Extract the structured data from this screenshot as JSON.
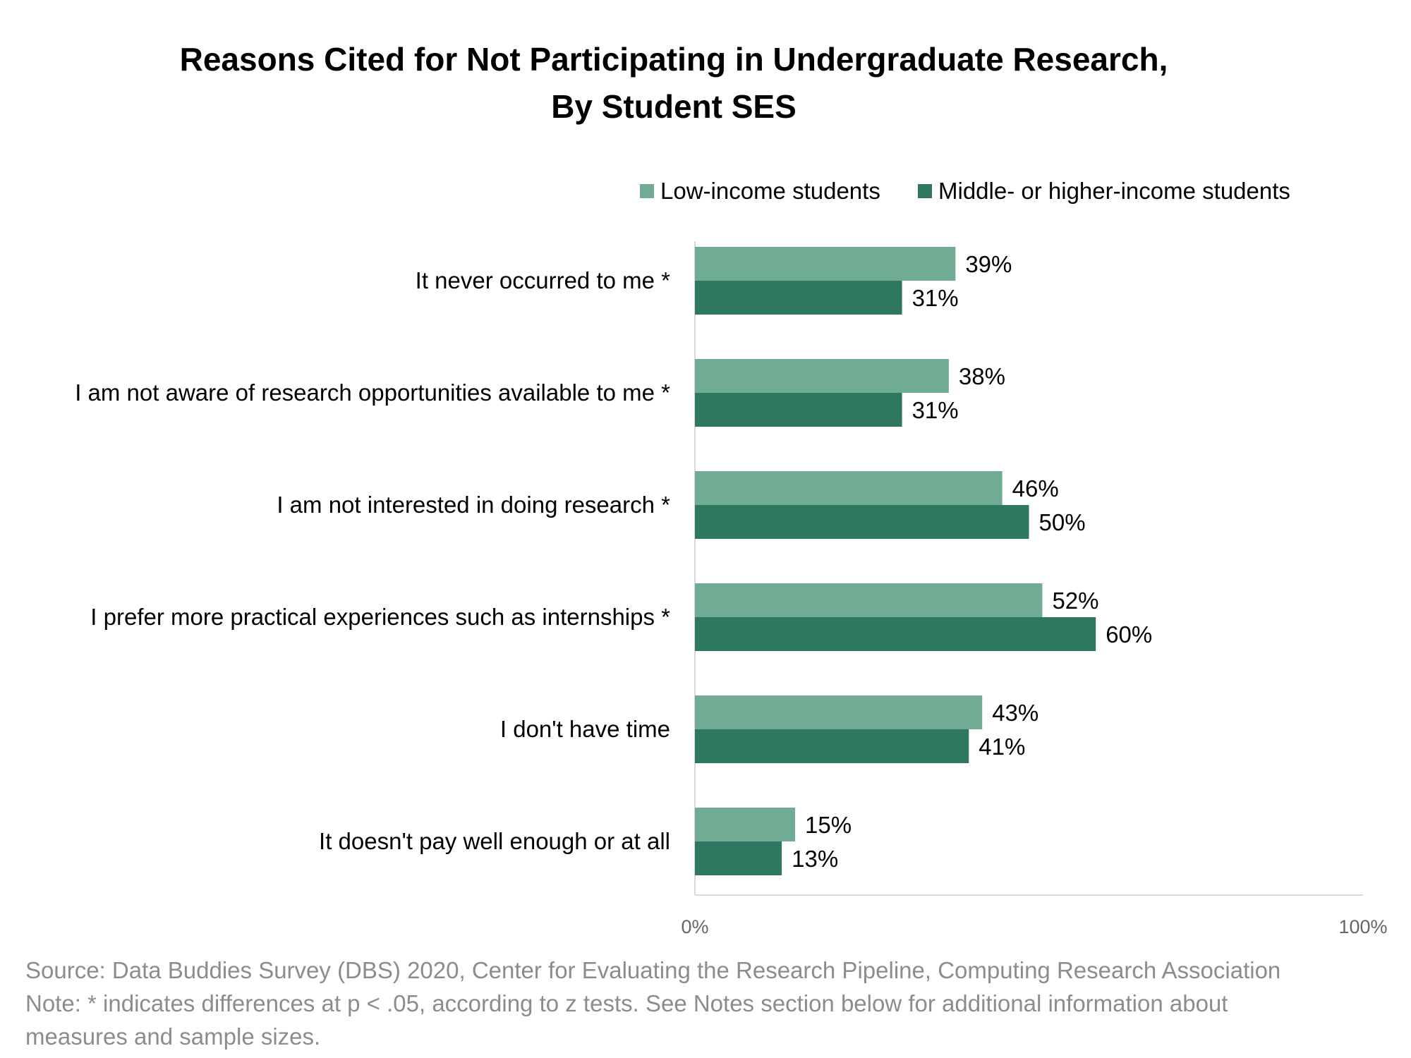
{
  "chart_data": {
    "type": "bar",
    "orientation": "horizontal",
    "title_lines": [
      "Reasons Cited for Not Participating in Undergraduate Research,",
      "By Student SES"
    ],
    "categories": [
      "It never occurred to me *",
      "I am not aware of research opportunities available to me *",
      "I am not interested in doing research *",
      "I prefer more practical experiences such as internships *",
      "I don't have time",
      "It doesn't pay well enough or at all"
    ],
    "series": [
      {
        "name": "Low-income students",
        "color": "#70ab94",
        "values": [
          39,
          38,
          46,
          52,
          43,
          15
        ],
        "labels": [
          "39%",
          "38%",
          "46%",
          "52%",
          "43%",
          "15%"
        ]
      },
      {
        "name": "Middle- or higher-income students",
        "color": "#2e7862",
        "values": [
          31,
          31,
          50,
          60,
          41,
          13
        ],
        "labels": [
          "31%",
          "31%",
          "50%",
          "60%",
          "41%",
          "13%"
        ]
      }
    ],
    "xlim": [
      0,
      100
    ],
    "x_ticks": [
      "0%",
      "100%"
    ],
    "grid": false,
    "legend_position": "top-right"
  },
  "footer": {
    "source": "Source: Data Buddies Survey (DBS) 2020, Center for Evaluating the Research Pipeline, Computing Research Association",
    "note_line1": "Note: * indicates differences at p < .05, according to z tests. See Notes section below for additional information about",
    "note_line2": "measures and sample sizes."
  }
}
